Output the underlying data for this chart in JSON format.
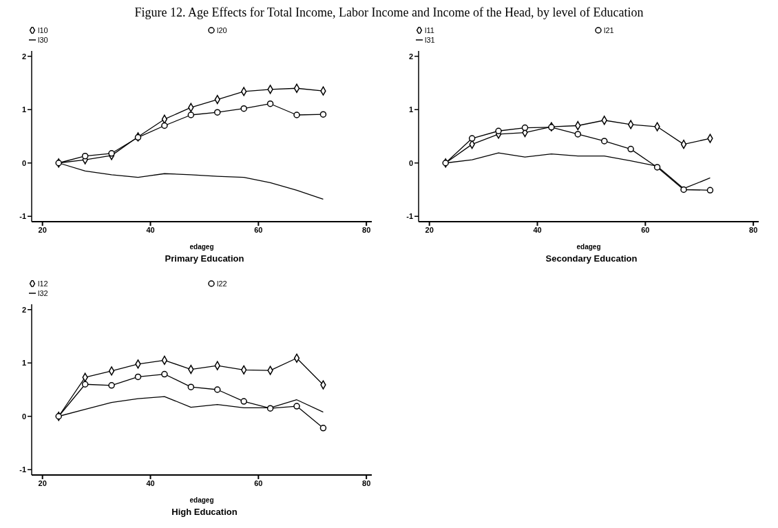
{
  "chart_data": [
    {
      "type": "line",
      "title": "Figure 12. Age Effects for Total Income, Labor Income and Income of the Head, by level of Education",
      "subtitle": "Primary Education",
      "xlabel": "edageg",
      "x": [
        23,
        27.9,
        32.8,
        37.7,
        42.6,
        47.5,
        52.4,
        57.3,
        62.2,
        67.1,
        72
      ],
      "xlim": [
        18,
        81
      ],
      "xticks": [
        20,
        40,
        60,
        80
      ],
      "ylim": [
        -1.1,
        2.1
      ],
      "yticks": [
        -1,
        0,
        1,
        2
      ],
      "grid": false,
      "legend": "top left",
      "series": [
        {
          "name": "l10",
          "color": "#000000",
          "marker": "diamond",
          "values": [
            0,
            0.06,
            0.14,
            0.49,
            0.82,
            1.04,
            1.19,
            1.34,
            1.38,
            1.4,
            1.35
          ]
        },
        {
          "name": "l20",
          "color": "#000000",
          "marker": "circle",
          "values": [
            0,
            0.13,
            0.18,
            0.48,
            0.7,
            0.9,
            0.95,
            1.02,
            1.11,
            0.9,
            0.91
          ]
        },
        {
          "name": "l30",
          "color": "#000000",
          "marker": "none",
          "values": [
            0,
            -0.15,
            -0.22,
            -0.27,
            -0.2,
            -0.22,
            -0.25,
            -0.27,
            -0.37,
            -0.51,
            -0.68
          ]
        }
      ]
    },
    {
      "type": "line",
      "subtitle": "Secondary Education",
      "xlabel": "edageg",
      "x": [
        23,
        27.9,
        32.8,
        37.7,
        42.6,
        47.5,
        52.4,
        57.3,
        62.2,
        67.1,
        72
      ],
      "xlim": [
        18,
        81
      ],
      "xticks": [
        20,
        40,
        60,
        80
      ],
      "ylim": [
        -1.1,
        2.1
      ],
      "yticks": [
        -1,
        0,
        1,
        2
      ],
      "grid": false,
      "legend": "top left",
      "series": [
        {
          "name": "l11",
          "color": "#000000",
          "marker": "diamond",
          "values": [
            0,
            0.35,
            0.54,
            0.57,
            0.68,
            0.7,
            0.8,
            0.72,
            0.68,
            0.35,
            0.46
          ]
        },
        {
          "name": "l21",
          "color": "#000000",
          "marker": "circle",
          "values": [
            0,
            0.46,
            0.6,
            0.66,
            0.67,
            0.54,
            0.41,
            0.26,
            -0.08,
            -0.5,
            -0.51
          ]
        },
        {
          "name": "l31",
          "color": "#000000",
          "marker": "none",
          "values": [
            0,
            0.06,
            0.19,
            0.11,
            0.17,
            0.13,
            0.13,
            0.04,
            -0.06,
            -0.48,
            -0.28
          ]
        }
      ]
    },
    {
      "type": "line",
      "subtitle": "High Education",
      "xlabel": "edageg",
      "x": [
        23,
        27.9,
        32.8,
        37.7,
        42.6,
        47.5,
        52.4,
        57.3,
        62.2,
        67.1,
        72
      ],
      "xlim": [
        18,
        81
      ],
      "xticks": [
        20,
        40,
        60,
        80
      ],
      "ylim": [
        -1.1,
        2.1
      ],
      "yticks": [
        -1,
        0,
        1,
        2
      ],
      "grid": false,
      "legend": "top left",
      "series": [
        {
          "name": "l12",
          "color": "#000000",
          "marker": "diamond",
          "values": [
            0,
            0.73,
            0.85,
            0.98,
            1.05,
            0.88,
            0.95,
            0.87,
            0.86,
            1.09,
            0.59
          ]
        },
        {
          "name": "l22",
          "color": "#000000",
          "marker": "circle",
          "values": [
            0,
            0.6,
            0.58,
            0.74,
            0.79,
            0.55,
            0.5,
            0.28,
            0.15,
            0.19,
            -0.22
          ]
        },
        {
          "name": "l32",
          "color": "#000000",
          "marker": "none",
          "values": [
            0,
            0.13,
            0.26,
            0.33,
            0.37,
            0.17,
            0.22,
            0.16,
            0.16,
            0.31,
            0.08
          ]
        }
      ]
    }
  ]
}
